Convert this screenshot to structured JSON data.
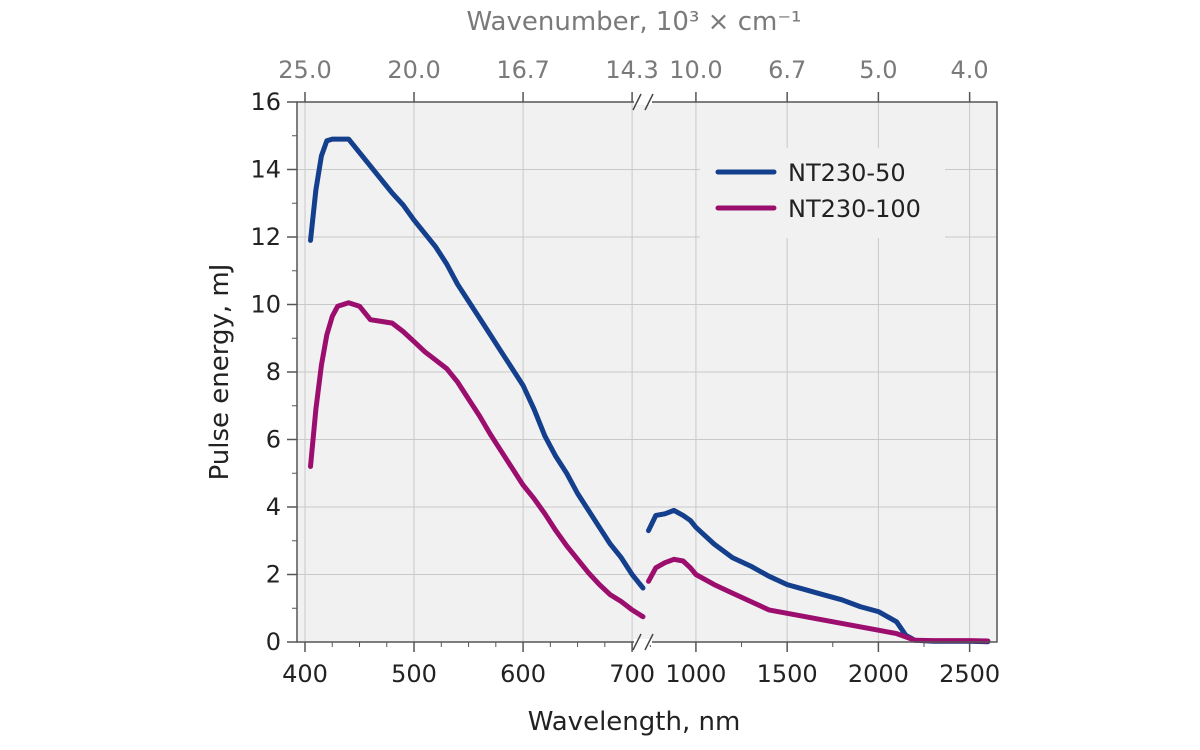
{
  "chart_data": {
    "type": "line",
    "xlabel": "Wavelength, nm",
    "ylabel": "Pulse energy, mJ",
    "top_xlabel": "Wavenumber, 10³ × cm⁻¹",
    "ylim": [
      0,
      16
    ],
    "y_ticks": [
      "0",
      "2",
      "4",
      "6",
      "8",
      "10",
      "12",
      "14",
      "16"
    ],
    "grid": true,
    "legend_position": "top-right",
    "x_axis_break": "broken axis between 710 nm and 710 nm (scale changes)",
    "segments": [
      {
        "xlim": [
          400,
          710
        ],
        "x_ticks": [
          "400",
          "500",
          "600",
          "700"
        ],
        "top_ticks": [
          "25.0",
          "20.0",
          "16.7",
          "14.3"
        ]
      },
      {
        "xlim": [
          710,
          2650
        ],
        "x_ticks": [
          "1000",
          "1500",
          "2000",
          "2500"
        ],
        "top_ticks": [
          "10.0",
          "6.7",
          "5.0",
          "4.0"
        ]
      }
    ],
    "series": [
      {
        "name": "NT230-50",
        "color": "#143f8c",
        "segment1": {
          "x": [
            405,
            410,
            415,
            420,
            425,
            430,
            440,
            450,
            460,
            470,
            480,
            490,
            500,
            510,
            520,
            530,
            540,
            550,
            560,
            570,
            580,
            590,
            600,
            610,
            620,
            630,
            640,
            650,
            660,
            670,
            680,
            690,
            700,
            710
          ],
          "y": [
            11.9,
            13.4,
            14.4,
            14.85,
            14.9,
            14.9,
            14.9,
            14.5,
            14.1,
            13.7,
            13.3,
            12.95,
            12.5,
            12.1,
            11.7,
            11.2,
            10.6,
            10.1,
            9.6,
            9.1,
            8.6,
            8.1,
            7.6,
            6.9,
            6.1,
            5.5,
            5.0,
            4.4,
            3.9,
            3.4,
            2.9,
            2.5,
            2.0,
            1.6
          ]
        },
        "segment2": {
          "x": [
            740,
            780,
            830,
            880,
            930,
            970,
            1000,
            1100,
            1200,
            1300,
            1400,
            1500,
            1600,
            1700,
            1800,
            1900,
            2000,
            2100,
            2150,
            2200,
            2300,
            2400,
            2500,
            2600
          ],
          "y": [
            3.3,
            3.75,
            3.8,
            3.9,
            3.75,
            3.6,
            3.4,
            2.9,
            2.5,
            2.25,
            1.95,
            1.7,
            1.55,
            1.4,
            1.25,
            1.05,
            0.9,
            0.6,
            0.2,
            0.05,
            0.02,
            0.02,
            0.02,
            0.01
          ]
        }
      },
      {
        "name": "NT230-100",
        "color": "#9c0e6e",
        "segment1": {
          "x": [
            405,
            410,
            415,
            420,
            425,
            430,
            440,
            450,
            460,
            470,
            480,
            490,
            500,
            510,
            520,
            530,
            540,
            550,
            560,
            570,
            580,
            590,
            600,
            610,
            620,
            630,
            640,
            650,
            660,
            670,
            680,
            690,
            700,
            710
          ],
          "y": [
            5.2,
            6.9,
            8.2,
            9.1,
            9.65,
            9.95,
            10.05,
            9.95,
            9.55,
            9.5,
            9.45,
            9.2,
            8.9,
            8.6,
            8.35,
            8.1,
            7.7,
            7.2,
            6.7,
            6.15,
            5.65,
            5.15,
            4.65,
            4.25,
            3.8,
            3.3,
            2.85,
            2.45,
            2.05,
            1.7,
            1.4,
            1.2,
            0.95,
            0.75
          ]
        },
        "segment2": {
          "x": [
            740,
            780,
            830,
            880,
            930,
            970,
            1000,
            1100,
            1200,
            1300,
            1400,
            1500,
            1600,
            1700,
            1800,
            1900,
            2000,
            2100,
            2150,
            2200,
            2300,
            2400,
            2500,
            2600
          ],
          "y": [
            1.8,
            2.2,
            2.35,
            2.45,
            2.4,
            2.2,
            2.0,
            1.7,
            1.45,
            1.2,
            0.95,
            0.85,
            0.75,
            0.65,
            0.55,
            0.45,
            0.35,
            0.25,
            0.15,
            0.05,
            0.04,
            0.04,
            0.04,
            0.03
          ]
        }
      }
    ]
  }
}
